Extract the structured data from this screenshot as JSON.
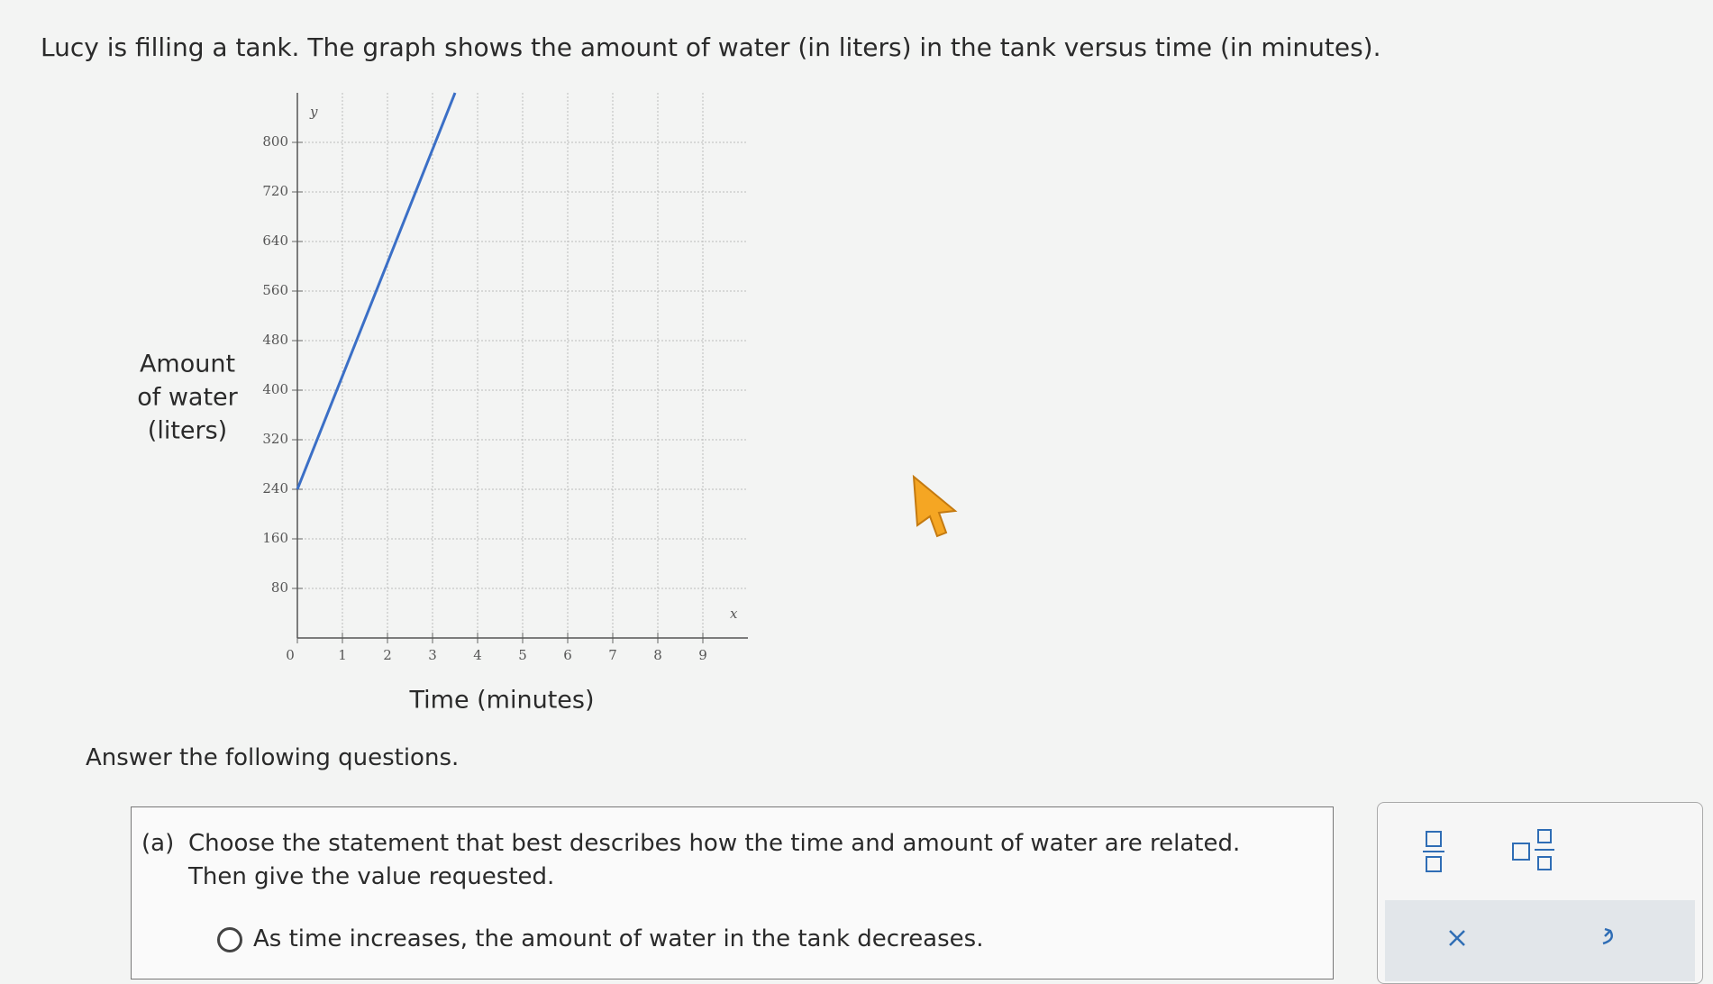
{
  "intro": "Lucy is filling a tank. The graph shows the amount of water (in liters) in the tank versus time (in minutes).",
  "chart_data": {
    "type": "line",
    "x_label": "Time (minutes)",
    "y_label": [
      "Amount",
      "of water",
      "(liters)"
    ],
    "x_axis_letter": "x",
    "y_axis_letter": "y",
    "x": [
      0,
      3.5
    ],
    "series": [
      {
        "color": "#3b6fc6",
        "values": [
          240,
          880
        ]
      }
    ],
    "xlim": [
      0,
      10
    ],
    "xticks": [
      0,
      1,
      2,
      3,
      4,
      5,
      6,
      7,
      8,
      9
    ],
    "ylim": [
      0,
      880
    ],
    "yticks": [
      80,
      160,
      240,
      320,
      400,
      480,
      560,
      640,
      720,
      800
    ],
    "grid": true
  },
  "instruction": "Answer the following questions.",
  "part_a": {
    "label": "(a)",
    "prompt": [
      "Choose the statement that best describes how the time and amount of water are related.",
      "Then give the value requested."
    ],
    "options": [
      "As time increases, the amount of water in the tank decreases."
    ]
  }
}
